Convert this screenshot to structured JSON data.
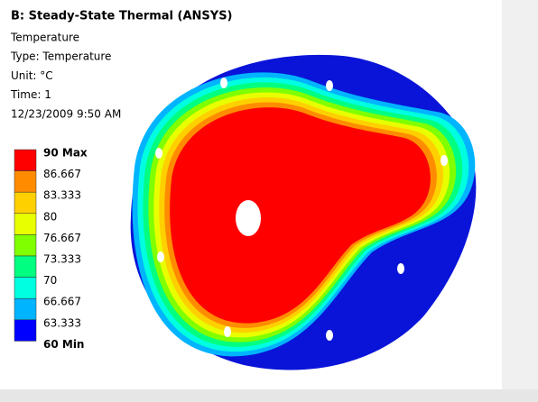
{
  "header": {
    "title": "B: Steady-State Thermal (ANSYS)",
    "lines": [
      "Temperature",
      "Type: Temperature",
      "Unit: °C",
      "Time: 1",
      "12/23/2009 9:50 AM"
    ]
  },
  "legend": {
    "labels": [
      "90 Max",
      "86.667",
      "83.333",
      "80",
      "76.667",
      "73.333",
      "70",
      "66.667",
      "63.333",
      "60 Min"
    ],
    "colors": [
      "#ff0000",
      "#ff8c00",
      "#ffd000",
      "#e8ff00",
      "#7fff00",
      "#00ff80",
      "#00ffe0",
      "#00b4ff",
      "#0000ff"
    ]
  }
}
